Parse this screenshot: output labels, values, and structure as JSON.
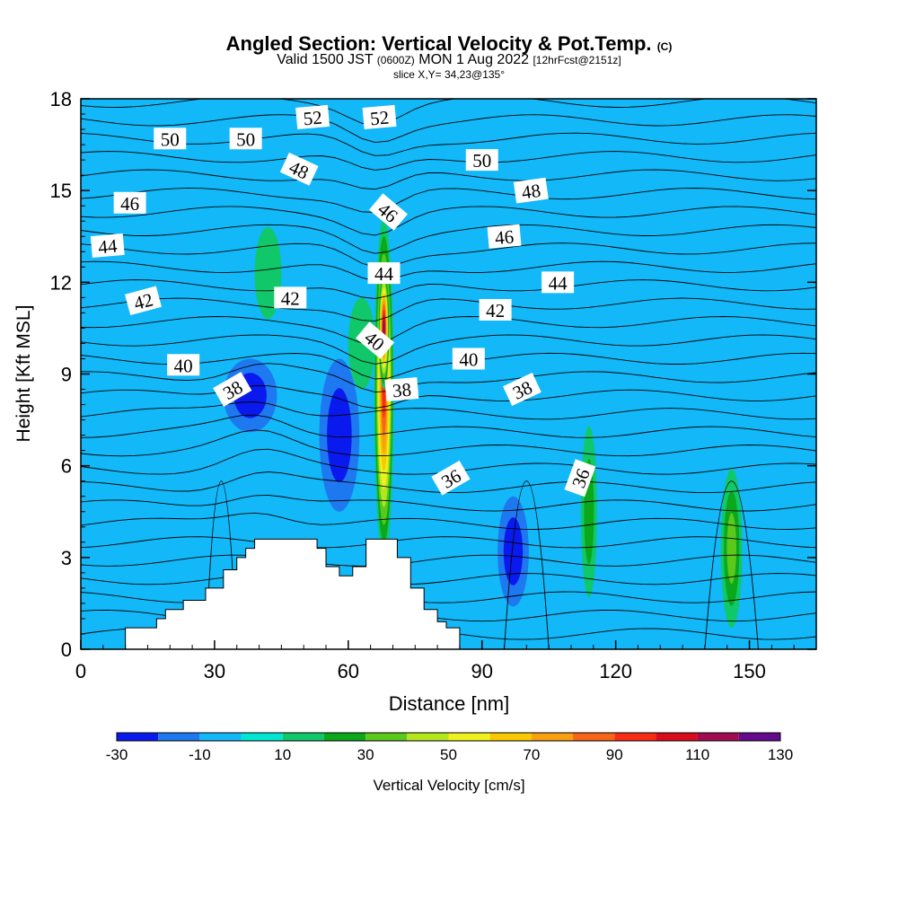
{
  "header": {
    "title": "Angled Section: Vertical Velocity & Pot.Temp.",
    "title_mark": "(C)",
    "valid_prefix": "Valid 1500 JST",
    "valid_utc": "(0600Z)",
    "valid_date": "MON 1 Aug 2022",
    "valid_fcst": "[12hrFcst@2151z]",
    "slice": "slice X,Y= 34,23@135°"
  },
  "chart_data": {
    "type": "heatmap",
    "xlabel": "Distance [nm]",
    "ylabel": "Height [Kft MSL]",
    "xlim": [
      0,
      165
    ],
    "ylim": [
      0,
      18
    ],
    "x_ticks": [
      0,
      30,
      60,
      90,
      120,
      150
    ],
    "y_ticks": [
      0,
      3,
      6,
      9,
      12,
      15,
      18
    ],
    "colorbar": {
      "label": "Vertical Velocity [cm/s]",
      "tick_labels": [
        "-30",
        "-10",
        "10",
        "30",
        "50",
        "70",
        "90",
        "110",
        "130"
      ],
      "bounds": [
        -30,
        -20,
        -10,
        0,
        10,
        20,
        30,
        40,
        50,
        60,
        70,
        80,
        90,
        100,
        110,
        120,
        130
      ],
      "colors": [
        "#0a1aee",
        "#1e78f0",
        "#12b8f8",
        "#00e6d2",
        "#10c86a",
        "#0aa81a",
        "#5cc81c",
        "#b4e61e",
        "#f0f01e",
        "#f8c800",
        "#f8a010",
        "#f86418",
        "#f82c14",
        "#d80c1c",
        "#a00c50",
        "#640a8c"
      ]
    },
    "background_color": "#12b8f8",
    "velocity_features": [
      {
        "x": 68,
        "y": 8.5,
        "rx": 2.2,
        "ry": 5.6,
        "value": 95
      },
      {
        "x": 68,
        "y": 10.5,
        "rx": 1.2,
        "ry": 2.0,
        "value": 110
      },
      {
        "x": 58,
        "y": 7.0,
        "rx": 4.5,
        "ry": 2.5,
        "value": -22
      },
      {
        "x": 97,
        "y": 3.2,
        "rx": 3.5,
        "ry": 1.8,
        "value": -28
      },
      {
        "x": 38,
        "y": 8.3,
        "rx": 6.0,
        "ry": 1.2,
        "value": -22
      },
      {
        "x": 146,
        "y": 3.3,
        "rx": 2.4,
        "ry": 2.6,
        "value": 35
      },
      {
        "x": 114,
        "y": 4.5,
        "rx": 1.8,
        "ry": 2.8,
        "value": 25
      },
      {
        "x": 42,
        "y": 12.3,
        "rx": 3.0,
        "ry": 1.5,
        "value": 18
      },
      {
        "x": 63,
        "y": 10.0,
        "rx": 3.0,
        "ry": 1.5,
        "value": 12
      }
    ],
    "theta_labels": [
      {
        "text": "52",
        "x": 52,
        "y": 17.4,
        "angle": -5
      },
      {
        "text": "52",
        "x": 67,
        "y": 17.4,
        "angle": -5
      },
      {
        "text": "50",
        "x": 20,
        "y": 16.7,
        "angle": 0
      },
      {
        "text": "50",
        "x": 37,
        "y": 16.7,
        "angle": 0
      },
      {
        "text": "50",
        "x": 90,
        "y": 16.0,
        "angle": 0
      },
      {
        "text": "48",
        "x": 49,
        "y": 15.7,
        "angle": 25
      },
      {
        "text": "48",
        "x": 101,
        "y": 15.0,
        "angle": -8
      },
      {
        "text": "46",
        "x": 11,
        "y": 14.6,
        "angle": 0
      },
      {
        "text": "46",
        "x": 69,
        "y": 14.3,
        "angle": 40
      },
      {
        "text": "46",
        "x": 95,
        "y": 13.5,
        "angle": -5
      },
      {
        "text": "44",
        "x": 6,
        "y": 13.2,
        "angle": -5
      },
      {
        "text": "44",
        "x": 68,
        "y": 12.3,
        "angle": 0
      },
      {
        "text": "44",
        "x": 107,
        "y": 12.0,
        "angle": 0
      },
      {
        "text": "42",
        "x": 14,
        "y": 11.4,
        "angle": -15
      },
      {
        "text": "42",
        "x": 47,
        "y": 11.5,
        "angle": 0
      },
      {
        "text": "42",
        "x": 93,
        "y": 11.1,
        "angle": 0
      },
      {
        "text": "40",
        "x": 23,
        "y": 9.3,
        "angle": 0
      },
      {
        "text": "40",
        "x": 66,
        "y": 10.1,
        "angle": 40
      },
      {
        "text": "40",
        "x": 87,
        "y": 9.5,
        "angle": 0
      },
      {
        "text": "38",
        "x": 34,
        "y": 8.5,
        "angle": -30
      },
      {
        "text": "38",
        "x": 72,
        "y": 8.5,
        "angle": -5
      },
      {
        "text": "38",
        "x": 99,
        "y": 8.5,
        "angle": -25
      },
      {
        "text": "36",
        "x": 83,
        "y": 5.6,
        "angle": -30
      },
      {
        "text": "36",
        "x": 112,
        "y": 5.6,
        "angle": -70
      }
    ],
    "terrain_profile": [
      [
        10,
        0.7
      ],
      [
        17,
        1.0
      ],
      [
        19,
        1.3
      ],
      [
        23,
        1.6
      ],
      [
        28,
        2.0
      ],
      [
        32,
        2.6
      ],
      [
        35,
        3.0
      ],
      [
        37,
        3.3
      ],
      [
        39,
        3.6
      ],
      [
        53,
        3.3
      ],
      [
        55,
        2.7
      ],
      [
        58,
        2.4
      ],
      [
        61,
        2.7
      ],
      [
        64,
        3.6
      ],
      [
        71,
        3.0
      ],
      [
        74,
        2.0
      ],
      [
        77,
        1.3
      ],
      [
        80,
        0.9
      ],
      [
        82,
        0.7
      ],
      [
        85,
        0.4
      ]
    ]
  }
}
